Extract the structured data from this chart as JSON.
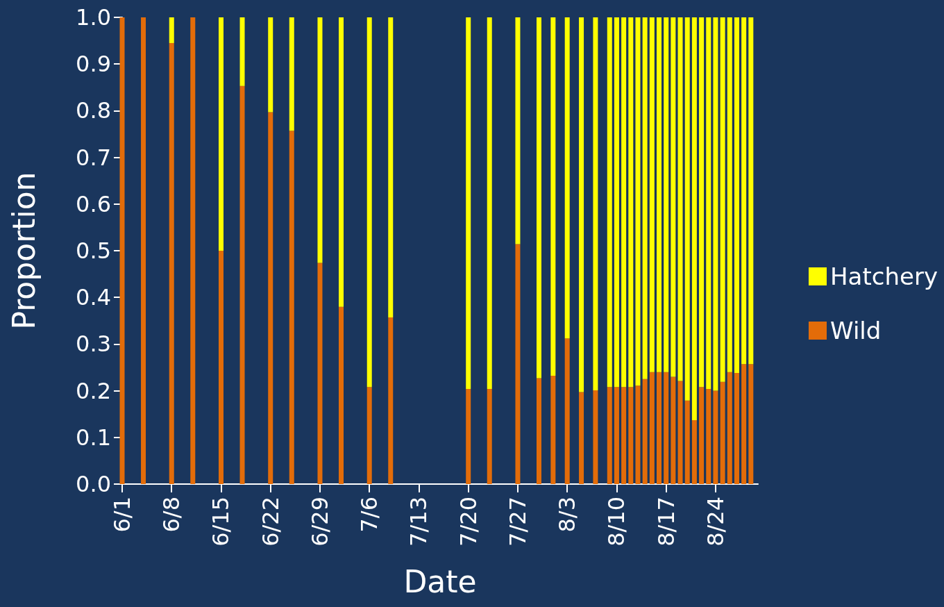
{
  "chart_data": {
    "type": "bar",
    "stacked": true,
    "xlabel": "Date",
    "ylabel": "Proportion",
    "x": [
      "--06-01",
      "--06-04",
      "--06-08",
      "--06-11",
      "--06-15",
      "--06-18",
      "--06-22",
      "--06-25",
      "--06-29",
      "--07-02",
      "--07-06",
      "--07-09",
      "--07-20",
      "--07-23",
      "--07-27",
      "--07-30",
      "--08-01",
      "--08-03",
      "--08-05",
      "--08-07",
      "--08-09",
      "--08-10",
      "--08-11",
      "--08-12",
      "--08-13",
      "--08-14",
      "--08-15",
      "--08-16",
      "--08-17",
      "--08-18",
      "--08-19",
      "--08-20",
      "--08-21",
      "--08-22",
      "--08-23",
      "--08-24",
      "--08-25",
      "--08-26",
      "--08-27",
      "--08-28",
      "--08-29"
    ],
    "series": [
      {
        "name": "Wild",
        "color": "#e36c09",
        "values": [
          1.0,
          1.0,
          0.945,
          1.0,
          0.5,
          0.853,
          0.797,
          0.757,
          0.474,
          0.38,
          0.208,
          0.357,
          0.204,
          0.204,
          0.514,
          0.227,
          0.232,
          0.312,
          0.197,
          0.201,
          0.208,
          0.208,
          0.208,
          0.208,
          0.211,
          0.225,
          0.24,
          0.24,
          0.24,
          0.23,
          0.221,
          0.179,
          0.137,
          0.208,
          0.204,
          0.2,
          0.219,
          0.24,
          0.238,
          0.257,
          0.257
        ]
      },
      {
        "name": "Hatchery",
        "color": "#ffff00",
        "values": [
          0,
          0,
          0.055,
          0,
          0.5,
          0.147,
          0.203,
          0.243,
          0.526,
          0.62,
          0.792,
          0.643,
          0.796,
          0.796,
          0.486,
          0.773,
          0.768,
          0.688,
          0.803,
          0.799,
          0.792,
          0.792,
          0.792,
          0.792,
          0.789,
          0.775,
          0.76,
          0.76,
          0.76,
          0.77,
          0.779,
          0.821,
          0.863,
          0.792,
          0.796,
          0.8,
          0.781,
          0.76,
          0.762,
          0.743,
          0.743
        ]
      }
    ],
    "xlim": [
      "--06-01",
      "--08-30"
    ],
    "xticks": [
      {
        "value": "--06-01",
        "label": "6/1"
      },
      {
        "value": "--06-08",
        "label": "6/8"
      },
      {
        "value": "--06-15",
        "label": "6/15"
      },
      {
        "value": "--06-22",
        "label": "6/22"
      },
      {
        "value": "--06-29",
        "label": "6/29"
      },
      {
        "value": "--07-06",
        "label": "7/6"
      },
      {
        "value": "--07-13",
        "label": "7/13"
      },
      {
        "value": "--07-20",
        "label": "7/20"
      },
      {
        "value": "--07-27",
        "label": "7/27"
      },
      {
        "value": "--08-03",
        "label": "8/3"
      },
      {
        "value": "--08-10",
        "label": "8/10"
      },
      {
        "value": "--08-17",
        "label": "8/17"
      },
      {
        "value": "--08-24",
        "label": "8/24"
      }
    ],
    "ylim": [
      0,
      1
    ],
    "yticks": [
      {
        "value": 0,
        "label": "0.0"
      },
      0.1,
      0.2,
      0.3,
      0.4,
      0.5,
      0.6,
      0.7,
      0.8,
      0.9,
      {
        "value": 1,
        "label": "1.0"
      }
    ],
    "grid": false,
    "legend": "right"
  }
}
